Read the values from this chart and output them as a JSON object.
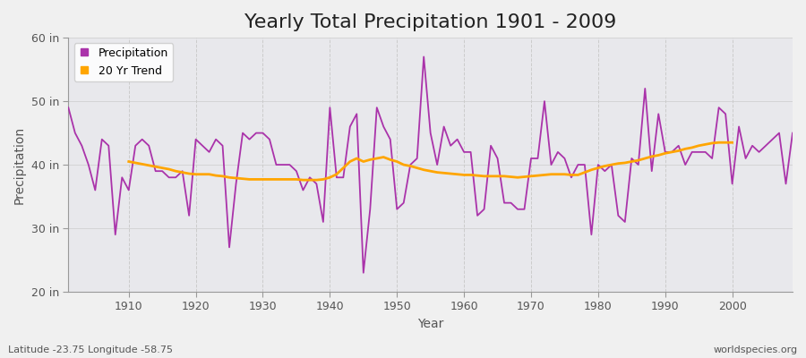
{
  "title": "Yearly Total Precipitation 1901 - 2009",
  "xlabel": "Year",
  "ylabel": "Precipitation",
  "footnote_left": "Latitude -23.75 Longitude -58.75",
  "footnote_right": "worldspecies.org",
  "years": [
    1901,
    1902,
    1903,
    1904,
    1905,
    1906,
    1907,
    1908,
    1909,
    1910,
    1911,
    1912,
    1913,
    1914,
    1915,
    1916,
    1917,
    1918,
    1919,
    1920,
    1921,
    1922,
    1923,
    1924,
    1925,
    1926,
    1927,
    1928,
    1929,
    1930,
    1931,
    1932,
    1933,
    1934,
    1935,
    1936,
    1937,
    1938,
    1939,
    1940,
    1941,
    1942,
    1943,
    1944,
    1945,
    1946,
    1947,
    1948,
    1949,
    1950,
    1951,
    1952,
    1953,
    1954,
    1955,
    1956,
    1957,
    1958,
    1959,
    1960,
    1961,
    1962,
    1963,
    1964,
    1965,
    1966,
    1967,
    1968,
    1969,
    1970,
    1971,
    1972,
    1973,
    1974,
    1975,
    1976,
    1977,
    1978,
    1979,
    1980,
    1981,
    1982,
    1983,
    1984,
    1985,
    1986,
    1987,
    1988,
    1989,
    1990,
    1991,
    1992,
    1993,
    1994,
    1995,
    1996,
    1997,
    1998,
    1999,
    2000,
    2001,
    2002,
    2003,
    2004,
    2005,
    2006,
    2007,
    2008,
    2009
  ],
  "precip_in": [
    49,
    45,
    43,
    40,
    36,
    44,
    43,
    29,
    38,
    36,
    43,
    44,
    43,
    39,
    39,
    38,
    38,
    39,
    32,
    44,
    43,
    42,
    44,
    43,
    27,
    37,
    45,
    44,
    45,
    45,
    44,
    40,
    40,
    40,
    39,
    36,
    38,
    37,
    31,
    49,
    38,
    38,
    46,
    48,
    23,
    33,
    49,
    46,
    44,
    33,
    34,
    40,
    41,
    57,
    45,
    40,
    46,
    43,
    44,
    42,
    42,
    32,
    33,
    43,
    41,
    34,
    34,
    33,
    33,
    41,
    41,
    50,
    40,
    42,
    41,
    38,
    40,
    40,
    29,
    40,
    39,
    40,
    32,
    31,
    41,
    40,
    52,
    39,
    48,
    42,
    42,
    43,
    40,
    42,
    42,
    42,
    41,
    49,
    48,
    37,
    46,
    41,
    43,
    42,
    43,
    44,
    45,
    37,
    45
  ],
  "trend_years": [
    1910,
    1911,
    1912,
    1913,
    1914,
    1915,
    1916,
    1917,
    1918,
    1919,
    1920,
    1921,
    1922,
    1923,
    1924,
    1925,
    1926,
    1927,
    1928,
    1929,
    1930,
    1931,
    1932,
    1933,
    1934,
    1935,
    1936,
    1937,
    1938,
    1939,
    1940,
    1941,
    1942,
    1943,
    1944,
    1945,
    1946,
    1947,
    1948,
    1949,
    1950,
    1951,
    1952,
    1953,
    1954,
    1955,
    1956,
    1957,
    1958,
    1959,
    1960,
    1961,
    1962,
    1963,
    1964,
    1965,
    1966,
    1967,
    1968,
    1969,
    1970,
    1971,
    1972,
    1973,
    1974,
    1975,
    1976,
    1977,
    1978,
    1979,
    1980,
    1981,
    1982,
    1983,
    1984,
    1985,
    1986,
    1987,
    1988,
    1989,
    1990,
    1991,
    1992,
    1993,
    1994,
    1995,
    1996,
    1997,
    1998,
    1999,
    2000
  ],
  "trend_in": [
    40.5,
    40.3,
    40.1,
    39.9,
    39.7,
    39.5,
    39.3,
    39.0,
    38.8,
    38.6,
    38.5,
    38.5,
    38.5,
    38.3,
    38.2,
    38.0,
    37.9,
    37.8,
    37.7,
    37.7,
    37.7,
    37.7,
    37.7,
    37.7,
    37.7,
    37.7,
    37.6,
    37.6,
    37.6,
    37.7,
    38.0,
    38.5,
    39.5,
    40.5,
    41.0,
    40.5,
    40.8,
    41.0,
    41.2,
    40.8,
    40.5,
    40.0,
    39.8,
    39.5,
    39.2,
    39.0,
    38.8,
    38.7,
    38.6,
    38.5,
    38.4,
    38.4,
    38.3,
    38.2,
    38.2,
    38.2,
    38.2,
    38.1,
    38.0,
    38.1,
    38.2,
    38.3,
    38.4,
    38.5,
    38.5,
    38.5,
    38.4,
    38.4,
    38.8,
    39.2,
    39.5,
    39.8,
    40.0,
    40.2,
    40.3,
    40.5,
    40.7,
    41.0,
    41.3,
    41.5,
    41.8,
    42.0,
    42.2,
    42.5,
    42.7,
    43.0,
    43.2,
    43.4,
    43.5,
    43.5,
    43.5
  ],
  "precip_color": "#aa33aa",
  "trend_color": "#ffa500",
  "outer_bg": "#f0f0f0",
  "plot_bg": "#e8e8ec",
  "ylim": [
    20,
    60
  ],
  "yticks": [
    20,
    30,
    40,
    50,
    60
  ],
  "ytick_labels": [
    "20 in",
    "30 in",
    "40 in",
    "50 in",
    "60 in"
  ],
  "xtick_years": [
    1910,
    1920,
    1930,
    1940,
    1950,
    1960,
    1970,
    1980,
    1990,
    2000
  ],
  "xlim": [
    1901,
    2009
  ],
  "title_fontsize": 16,
  "axis_label_fontsize": 10,
  "tick_fontsize": 9,
  "legend_fontsize": 9,
  "grid_color": "#cccccc",
  "spine_color": "#999999",
  "text_color": "#555555"
}
